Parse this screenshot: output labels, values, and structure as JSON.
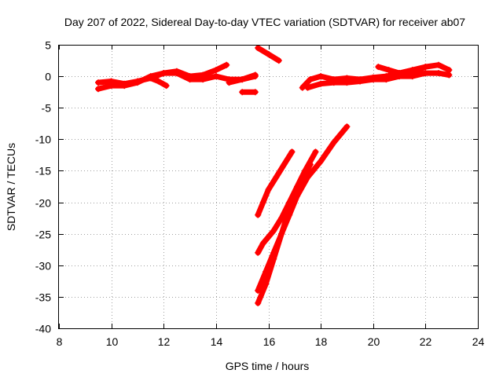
{
  "chart_data": {
    "type": "scatter",
    "title": "Day 207 of 2022, Sidereal Day-to-day VTEC variation (SDTVAR) for receiver ab07",
    "xlabel": "GPS time / hours",
    "ylabel": "SDTVAR / TECUs",
    "xlim": [
      8,
      24
    ],
    "ylim": [
      -40,
      5
    ],
    "xticks": [
      8,
      10,
      12,
      14,
      16,
      18,
      20,
      22,
      24
    ],
    "yticks": [
      5,
      0,
      -5,
      -10,
      -15,
      -20,
      -25,
      -30,
      -35,
      -40
    ],
    "grid": true,
    "legend": "none",
    "marker": "plus",
    "color": "#ff0000",
    "series": [
      {
        "x": [
          9.5,
          10.0,
          10.5,
          11.0,
          11.5,
          12.0,
          12.5,
          13.0,
          13.5,
          14.0,
          14.5,
          15.0,
          15.5
        ],
        "y": [
          -2.0,
          -1.5,
          -1.5,
          -1.0,
          0.0,
          0.5,
          0.5,
          -0.5,
          -0.5,
          0.0,
          -0.5,
          -0.5,
          0.0
        ]
      },
      {
        "x": [
          9.5,
          10.0,
          10.5,
          11.0,
          11.5,
          12.0
        ],
        "y": [
          -1.0,
          -0.8,
          -1.2,
          -0.8,
          -0.3,
          0.5
        ]
      },
      {
        "x": [
          12.0,
          12.5,
          13.0,
          13.5,
          14.0,
          14.4
        ],
        "y": [
          0.5,
          0.8,
          0.0,
          0.2,
          1.0,
          1.8
        ]
      },
      {
        "x": [
          11.5,
          11.8,
          12.1
        ],
        "y": [
          -0.3,
          -0.8,
          -1.5
        ]
      },
      {
        "x": [
          14.5,
          15.0,
          15.5
        ],
        "y": [
          -1.0,
          -0.5,
          0.2
        ]
      },
      {
        "x": [
          15.0,
          15.5
        ],
        "y": [
          -2.5,
          -2.5
        ]
      },
      {
        "x": [
          15.6,
          16.0,
          16.4
        ],
        "y": [
          4.5,
          3.5,
          2.5
        ]
      },
      {
        "x": [
          17.3,
          17.6,
          18.0,
          18.5,
          19.0,
          19.5,
          20.0,
          20.5,
          21.0,
          21.5,
          22.0,
          22.5,
          22.9
        ],
        "y": [
          -1.8,
          -0.5,
          0.0,
          -0.5,
          -0.3,
          -0.5,
          -0.2,
          0.0,
          0.5,
          1.0,
          1.5,
          1.8,
          1.0
        ]
      },
      {
        "x": [
          17.5,
          18.0,
          18.5,
          19.0,
          19.5,
          20.0,
          20.5,
          21.0,
          21.5,
          22.0,
          22.5,
          22.9
        ],
        "y": [
          -1.8,
          -1.2,
          -1.0,
          -1.0,
          -0.8,
          -0.5,
          -0.5,
          0.0,
          0.0,
          0.5,
          0.5,
          0.2
        ]
      },
      {
        "x": [
          20.2,
          20.6,
          21.0,
          21.5,
          22.0
        ],
        "y": [
          1.5,
          1.0,
          0.5,
          0.5,
          1.5
        ]
      },
      {
        "x": [
          15.6,
          15.8,
          16.0,
          16.3,
          16.6,
          16.9
        ],
        "y": [
          -22.0,
          -20.0,
          -18.0,
          -16.0,
          -14.0,
          -12.0
        ]
      },
      {
        "x": [
          15.6,
          15.8,
          16.0,
          16.2,
          16.5,
          16.8,
          17.1,
          17.4,
          17.8
        ],
        "y": [
          -28.0,
          -26.5,
          -25.5,
          -24.5,
          -22.5,
          -20.0,
          -17.5,
          -15.0,
          -12.0
        ]
      },
      {
        "x": [
          15.6,
          15.9,
          16.2,
          16.5,
          16.8,
          17.1,
          17.5,
          18.0,
          18.5,
          19.0
        ],
        "y": [
          -34.0,
          -31.0,
          -28.0,
          -25.0,
          -22.0,
          -19.0,
          -16.0,
          -13.5,
          -10.5,
          -8.0
        ]
      },
      {
        "x": [
          15.6,
          15.9,
          16.2,
          16.5,
          16.8,
          17.2,
          17.6
        ],
        "y": [
          -36.0,
          -33.0,
          -29.0,
          -25.0,
          -21.0,
          -17.0,
          -14.0
        ]
      }
    ]
  }
}
